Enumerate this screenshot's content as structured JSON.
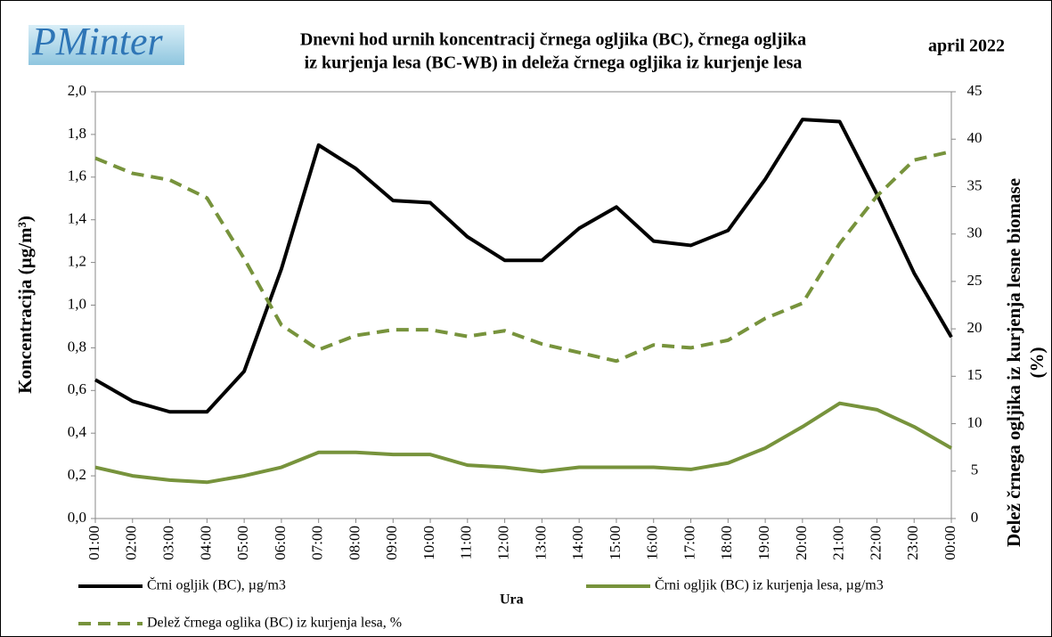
{
  "chart_data": {
    "type": "line",
    "logo": "PMinter",
    "title": [
      "Dnevni hod urnih  koncentracij črnega ogljika (BC), črnega ogljika",
      "iz kurjenja lesa (BC-WB) in deleža črnega ogljika iz kurjenje lesa"
    ],
    "period": "april 2022",
    "x_label": "Ura",
    "y_label": "Koncentracija  (µg/m³)",
    "y2_label": [
      "Delež črnega ogljika iz kurjenja lesne biomase",
      "(%)"
    ],
    "categories": [
      "01:00",
      "02:00",
      "03:00",
      "04:00",
      "05:00",
      "06:00",
      "07:00",
      "08:00",
      "09:00",
      "10:00",
      "11:00",
      "12:00",
      "13:00",
      "14:00",
      "15:00",
      "16:00",
      "17:00",
      "18:00",
      "19:00",
      "20:00",
      "21:00",
      "22:00",
      "23:00",
      "00:00"
    ],
    "series": [
      {
        "name": "Črni ogljik (BC), µg/m3",
        "color": "#000000",
        "line_style": "solid",
        "values": [
          0.65,
          0.55,
          0.5,
          0.5,
          0.69,
          1.17,
          1.75,
          1.64,
          1.49,
          1.48,
          1.32,
          1.21,
          1.21,
          1.36,
          1.46,
          1.3,
          1.28,
          1.35,
          1.59,
          1.87,
          1.86,
          1.52,
          1.15,
          0.85
        ]
      },
      {
        "name": "Črni ogljik (BC) iz kurjenja lesa, µg/m3",
        "color": "#77933c",
        "line_style": "solid",
        "values": [
          0.24,
          0.2,
          0.18,
          0.17,
          0.2,
          0.24,
          0.31,
          0.31,
          0.3,
          0.3,
          0.25,
          0.24,
          0.22,
          0.24,
          0.24,
          0.24,
          0.23,
          0.26,
          0.33,
          0.43,
          0.54,
          0.51,
          0.43,
          0.33
        ]
      },
      {
        "name": "Delež črnega oglika (BC) iz kurjenja lesa, %",
        "color": "#77933c",
        "line_style": "dashed",
        "axis": "y2",
        "values": [
          38.0,
          36.4,
          35.7,
          33.8,
          27.4,
          20.4,
          17.8,
          19.3,
          19.9,
          19.9,
          19.2,
          19.8,
          18.4,
          17.5,
          16.6,
          18.3,
          18.0,
          18.8,
          21.1,
          22.7,
          29.0,
          34.0,
          37.8,
          38.7
        ]
      }
    ],
    "ylim": [
      0,
      2.0
    ],
    "yticks": [
      {
        "value": 0,
        "label": "0,0"
      },
      {
        "value": 0.2,
        "label": "0,2"
      },
      {
        "value": 0.4,
        "label": "0,4"
      },
      {
        "value": 0.6,
        "label": "0,6"
      },
      {
        "value": 0.8,
        "label": "0,8"
      },
      {
        "value": 1.0,
        "label": "1,0"
      },
      {
        "value": 1.2,
        "label": "1,2"
      },
      {
        "value": 1.4,
        "label": "1,4"
      },
      {
        "value": 1.6,
        "label": "1,6"
      },
      {
        "value": 1.8,
        "label": "1,8"
      },
      {
        "value": 2.0,
        "label": "2,0"
      }
    ],
    "y2lim": [
      0,
      45
    ],
    "y2ticks": [
      0,
      5,
      10,
      15,
      20,
      25,
      30,
      35,
      40,
      45
    ],
    "grid": false
  }
}
